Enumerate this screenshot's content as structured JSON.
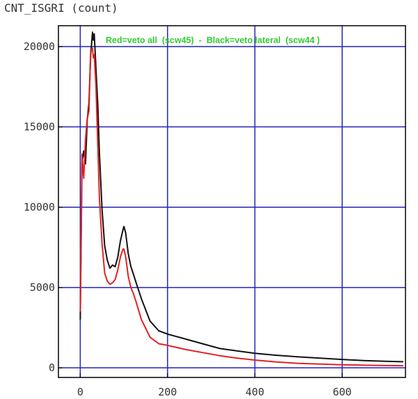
{
  "chart_data": {
    "type": "line",
    "title": "CNT_ISGRI (count)",
    "annotation": "Red=veto all  (scw45)  -  Black=veto lateral  (scw44 )",
    "xlim": [
      -50,
      745
    ],
    "ylim": [
      -600,
      21300
    ],
    "xticks": [
      0,
      200,
      400,
      600
    ],
    "yticks": [
      0,
      5000,
      10000,
      15000,
      20000
    ],
    "grid": true,
    "colors": {
      "grid": "#2222bb",
      "axes": "#000000",
      "annotation": "#33cc33",
      "tick_text": "#333333"
    },
    "series": [
      {
        "name": "Black=veto lateral (scw44)",
        "color": "#111111",
        "x": [
          0,
          4,
          8,
          12,
          16,
          20,
          24,
          28,
          30,
          32,
          36,
          40,
          44,
          50,
          56,
          62,
          68,
          74,
          80,
          86,
          92,
          98,
          100,
          104,
          110,
          116,
          122,
          128,
          140,
          160,
          180,
          200,
          240,
          280,
          320,
          360,
          400,
          450,
          500,
          550,
          600,
          650,
          700,
          740
        ],
        "y": [
          3000,
          12800,
          13500,
          12700,
          15400,
          16500,
          19500,
          20900,
          20400,
          20800,
          18600,
          16500,
          13300,
          9800,
          7600,
          6700,
          6200,
          6400,
          6300,
          6900,
          7900,
          8600,
          8800,
          8400,
          7100,
          6300,
          5800,
          5300,
          4300,
          2900,
          2300,
          2100,
          1800,
          1500,
          1200,
          1050,
          900,
          780,
          680,
          600,
          520,
          450,
          410,
          380
        ]
      },
      {
        "name": "Red=veto all (scw45)",
        "color": "#e02222",
        "x": [
          0,
          4,
          8,
          12,
          16,
          20,
          24,
          28,
          30,
          32,
          36,
          40,
          44,
          50,
          56,
          62,
          68,
          74,
          80,
          86,
          92,
          98,
          100,
          104,
          110,
          116,
          122,
          128,
          140,
          160,
          180,
          200,
          240,
          280,
          320,
          360,
          400,
          450,
          500,
          550,
          600,
          650,
          700,
          740
        ],
        "y": [
          3500,
          13300,
          11800,
          14200,
          15500,
          16000,
          19800,
          19900,
          19300,
          19500,
          17500,
          14000,
          10500,
          7700,
          5900,
          5400,
          5200,
          5300,
          5500,
          6100,
          6900,
          7400,
          7400,
          6900,
          5700,
          5000,
          4600,
          4100,
          3000,
          1900,
          1500,
          1400,
          1150,
          950,
          750,
          600,
          480,
          360,
          280,
          230,
          190,
          160,
          140,
          130
        ]
      }
    ]
  }
}
